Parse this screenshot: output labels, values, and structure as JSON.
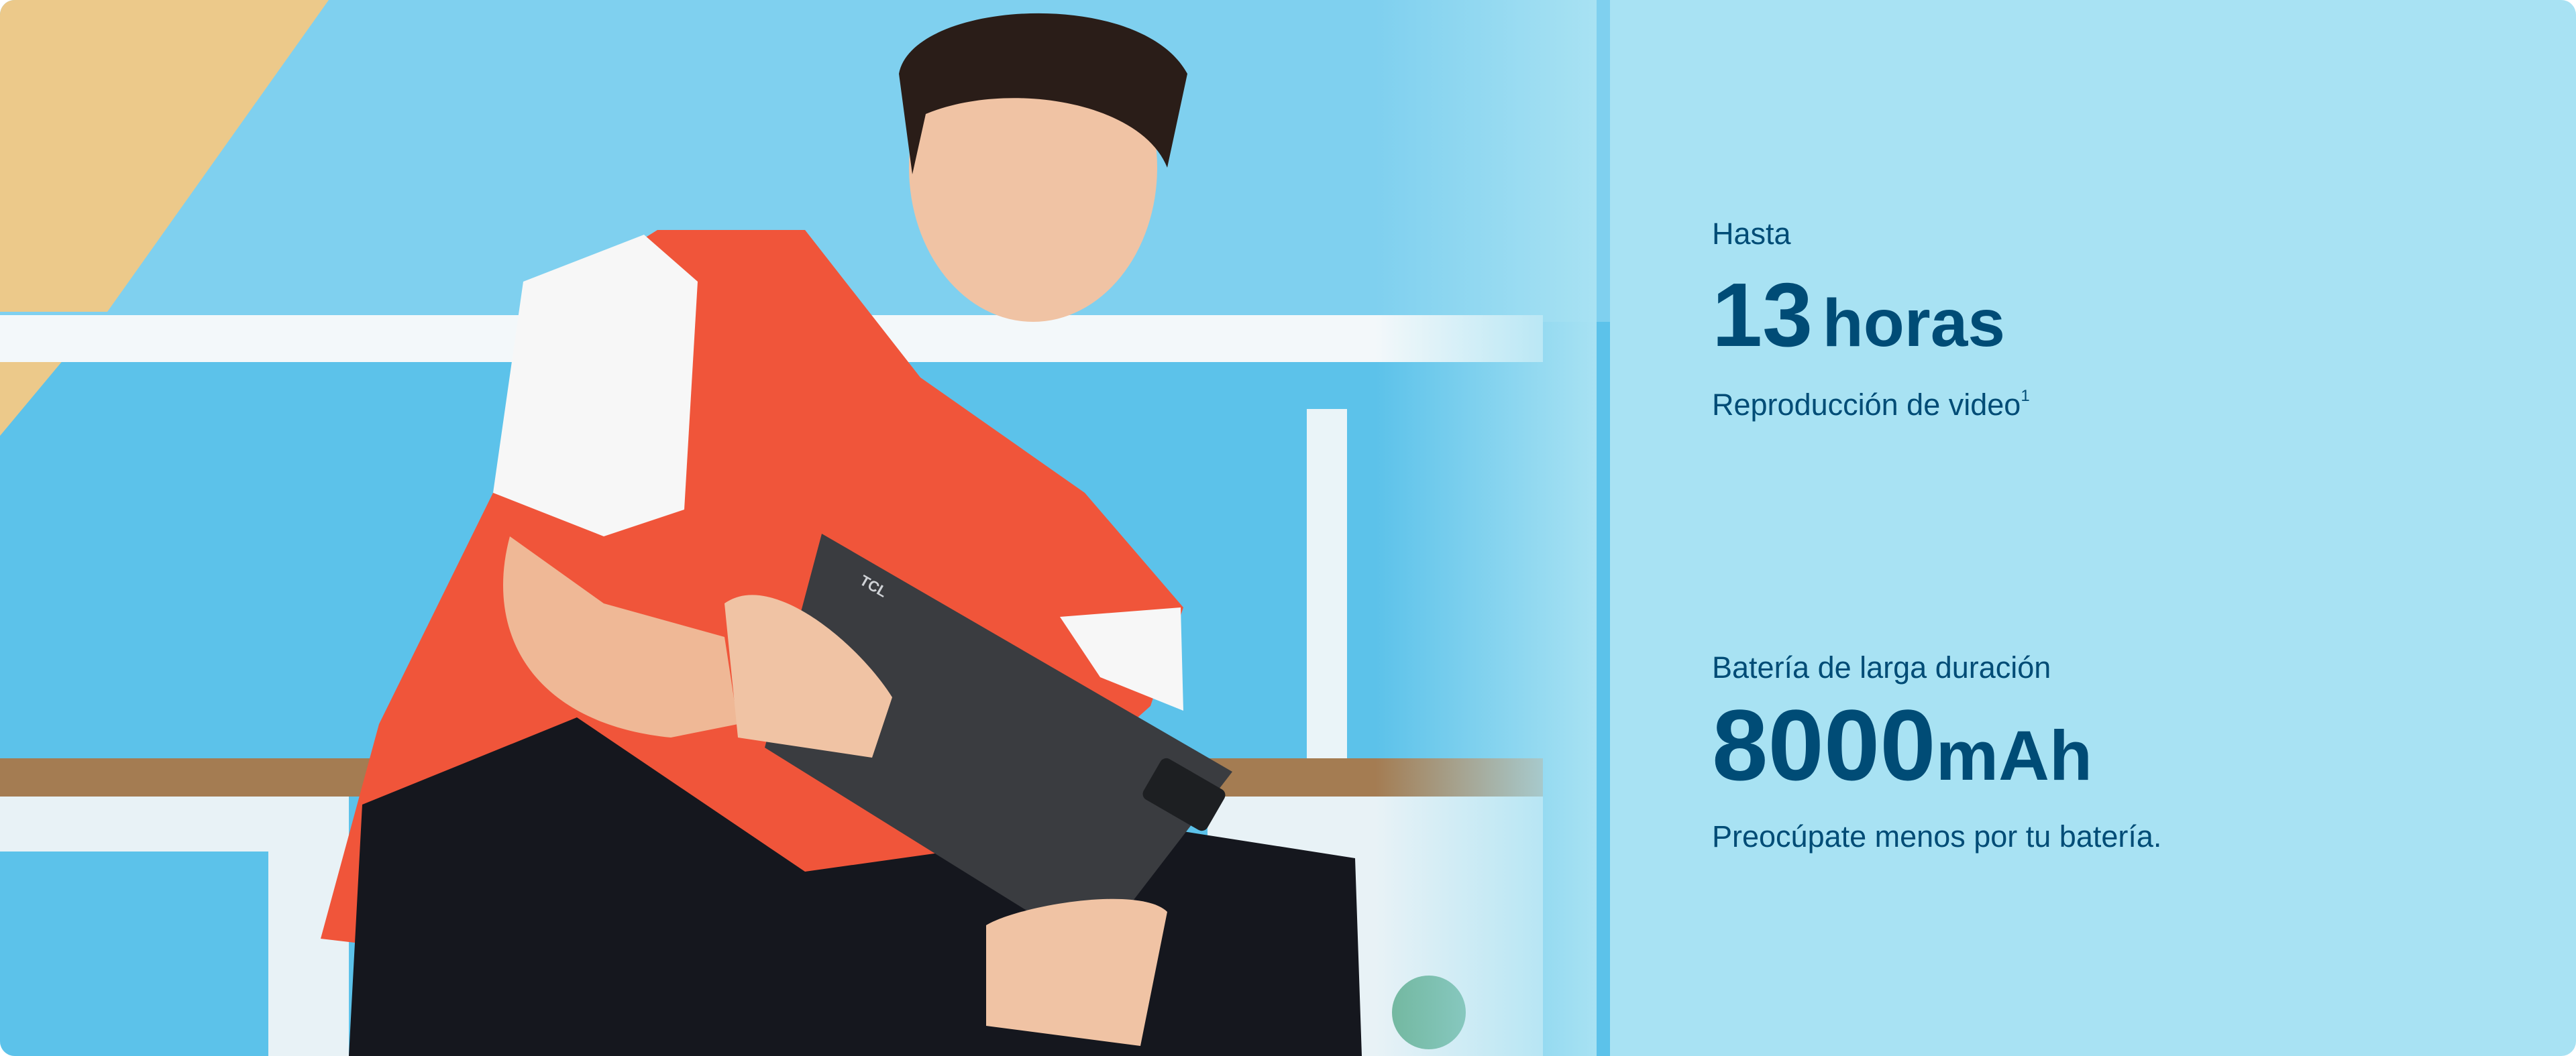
{
  "colors": {
    "background": "#a8e2f3",
    "text": "#004c76",
    "vest": "#f0553a",
    "wall": "#5cc2ea",
    "tablet": "#3a3c40"
  },
  "photo": {
    "tablet_brand": "TCL"
  },
  "spec1": {
    "prefix": "Hasta",
    "number": "13",
    "unit": "horas",
    "caption": "Reproducción de video",
    "footnote": "1"
  },
  "spec2": {
    "label": "Batería de larga duración",
    "number": "8000",
    "unit": "mAh",
    "caption": "Preocúpate menos por tu batería."
  }
}
